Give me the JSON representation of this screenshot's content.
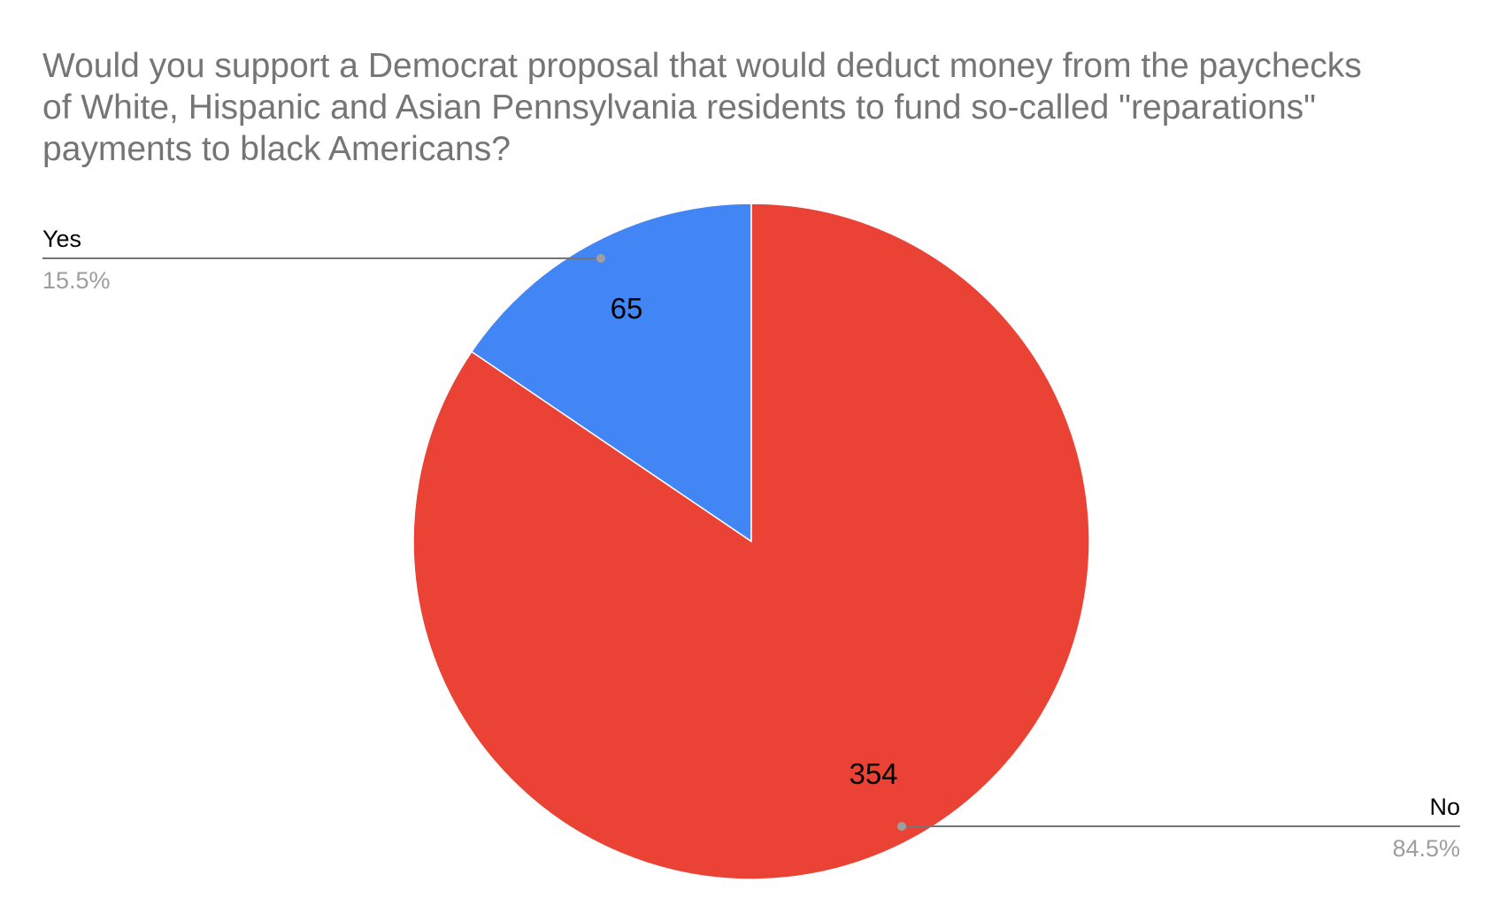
{
  "chart_data": {
    "type": "pie",
    "title_lines": [
      "Would you support a Democrat proposal that would deduct money from the paychecks",
      "of White, Hispanic and Asian Pennsylvania residents to fund so-called \"reparations\"",
      "payments to black Americans?"
    ],
    "slices": [
      {
        "label": "Yes",
        "value": 65,
        "percent": "15.5%",
        "color": "#4285f4"
      },
      {
        "label": "No",
        "value": 354,
        "percent": "84.5%",
        "color": "#ea4335"
      }
    ],
    "start_angle_deg": 0,
    "direction": "counterclockwise",
    "leader_color": "#757575"
  }
}
